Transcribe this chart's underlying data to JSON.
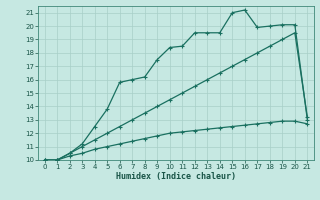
{
  "xlabel": "Humidex (Indice chaleur)",
  "xlim": [
    -0.5,
    21.5
  ],
  "ylim": [
    10,
    21.5
  ],
  "bg_color": "#c6e8e2",
  "grid_color": "#a8cfc8",
  "line_color": "#1a7060",
  "series": [
    {
      "x": [
        0,
        1,
        2,
        3,
        4,
        5,
        6,
        7,
        8,
        9,
        10,
        11,
        12,
        13,
        14,
        15,
        16,
        17,
        18,
        19,
        20,
        21
      ],
      "y": [
        10,
        10,
        10.3,
        10.5,
        10.8,
        11.0,
        11.2,
        11.4,
        11.6,
        11.8,
        12.0,
        12.1,
        12.2,
        12.3,
        12.4,
        12.5,
        12.6,
        12.7,
        12.8,
        12.9,
        12.9,
        12.7
      ]
    },
    {
      "x": [
        0,
        1,
        2,
        3,
        4,
        5,
        6,
        7,
        8,
        9,
        10,
        11,
        12,
        13,
        14,
        15,
        16,
        17,
        18,
        19,
        20,
        21
      ],
      "y": [
        10,
        10,
        10.5,
        11.0,
        11.5,
        12.0,
        12.5,
        13.0,
        13.5,
        14.0,
        14.5,
        15.0,
        15.5,
        16.0,
        16.5,
        17.0,
        17.5,
        18.0,
        18.5,
        19.0,
        19.5,
        13.2
      ]
    },
    {
      "x": [
        0,
        1,
        2,
        3,
        4,
        5,
        6,
        7,
        8,
        9,
        10,
        11,
        12,
        13,
        14,
        15,
        16,
        17,
        18,
        19,
        20,
        21
      ],
      "y": [
        10,
        10,
        10.5,
        11.2,
        12.5,
        13.8,
        15.8,
        16.0,
        16.2,
        17.5,
        18.4,
        18.5,
        19.5,
        19.5,
        19.5,
        21.0,
        21.2,
        19.9,
        20.0,
        20.1,
        20.1,
        13.0
      ]
    }
  ]
}
